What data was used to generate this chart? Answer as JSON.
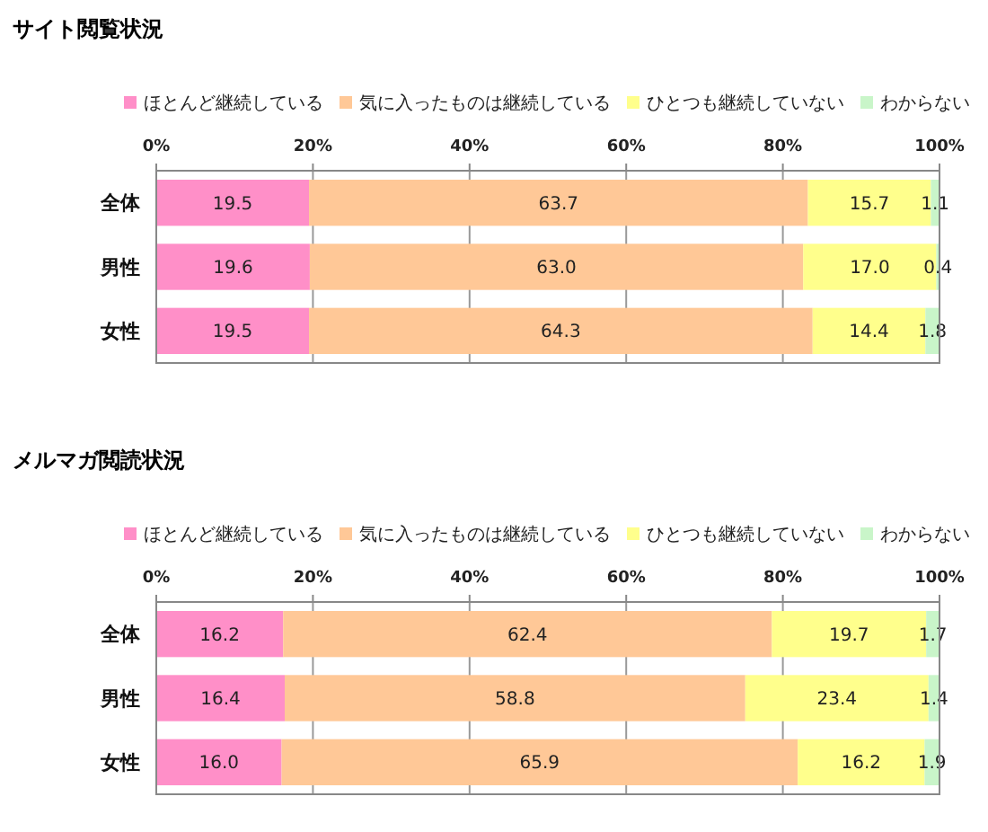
{
  "chart_data": [
    {
      "type": "bar",
      "orientation": "horizontal",
      "stacked": true,
      "title": "サイト閲覧状況",
      "categories": [
        "全体",
        "男性",
        "女性"
      ],
      "series": [
        {
          "name": "ほとんど継続している",
          "color": "#ff8fc8",
          "values": [
            19.5,
            19.6,
            19.5
          ],
          "value_labels": [
            "19.5",
            "19.6",
            "19.5"
          ]
        },
        {
          "name": "気に入ったものは継続している",
          "color": "#ffc897",
          "values": [
            63.7,
            63.0,
            64.3
          ],
          "value_labels": [
            "63.7",
            "63.0",
            "64.3"
          ]
        },
        {
          "name": "ひとつも継続していない",
          "color": "#ffff8c",
          "values": [
            15.7,
            17.0,
            14.4
          ],
          "value_labels": [
            "15.7",
            "17.0",
            "14.4"
          ]
        },
        {
          "name": "わからない",
          "color": "#c9f5c9",
          "values": [
            1.1,
            0.4,
            1.8
          ],
          "value_labels": [
            "1.1",
            "0.4",
            "1.8"
          ]
        }
      ],
      "xlim": [
        0,
        100
      ],
      "xticks": [
        {
          "value": 0,
          "label": "0%"
        },
        {
          "value": 20,
          "label": "20%"
        },
        {
          "value": 40,
          "label": "40%"
        },
        {
          "value": 60,
          "label": "60%"
        },
        {
          "value": 80,
          "label": "80%"
        },
        {
          "value": 100,
          "label": "100%"
        }
      ],
      "grid": "x",
      "legend": "top"
    },
    {
      "type": "bar",
      "orientation": "horizontal",
      "stacked": true,
      "title": "メルマガ閲読状況",
      "categories": [
        "全体",
        "男性",
        "女性"
      ],
      "series": [
        {
          "name": "ほとんど継続している",
          "color": "#ff8fc8",
          "values": [
            16.2,
            16.4,
            16.0
          ],
          "value_labels": [
            "16.2",
            "16.4",
            "16.0"
          ]
        },
        {
          "name": "気に入ったものは継続している",
          "color": "#ffc897",
          "values": [
            62.4,
            58.8,
            65.9
          ],
          "value_labels": [
            "62.4",
            "58.8",
            "65.9"
          ]
        },
        {
          "name": "ひとつも継続していない",
          "color": "#ffff8c",
          "values": [
            19.7,
            23.4,
            16.2
          ],
          "value_labels": [
            "19.7",
            "23.4",
            "16.2"
          ]
        },
        {
          "name": "わからない",
          "color": "#c9f5c9",
          "values": [
            1.7,
            1.4,
            1.9
          ],
          "value_labels": [
            "1.7",
            "1.4",
            "1.9"
          ]
        }
      ],
      "xlim": [
        0,
        100
      ],
      "xticks": [
        {
          "value": 0,
          "label": "0%"
        },
        {
          "value": 20,
          "label": "20%"
        },
        {
          "value": 40,
          "label": "40%"
        },
        {
          "value": 60,
          "label": "60%"
        },
        {
          "value": 80,
          "label": "80%"
        },
        {
          "value": 100,
          "label": "100%"
        }
      ],
      "grid": "x",
      "legend": "top"
    }
  ]
}
